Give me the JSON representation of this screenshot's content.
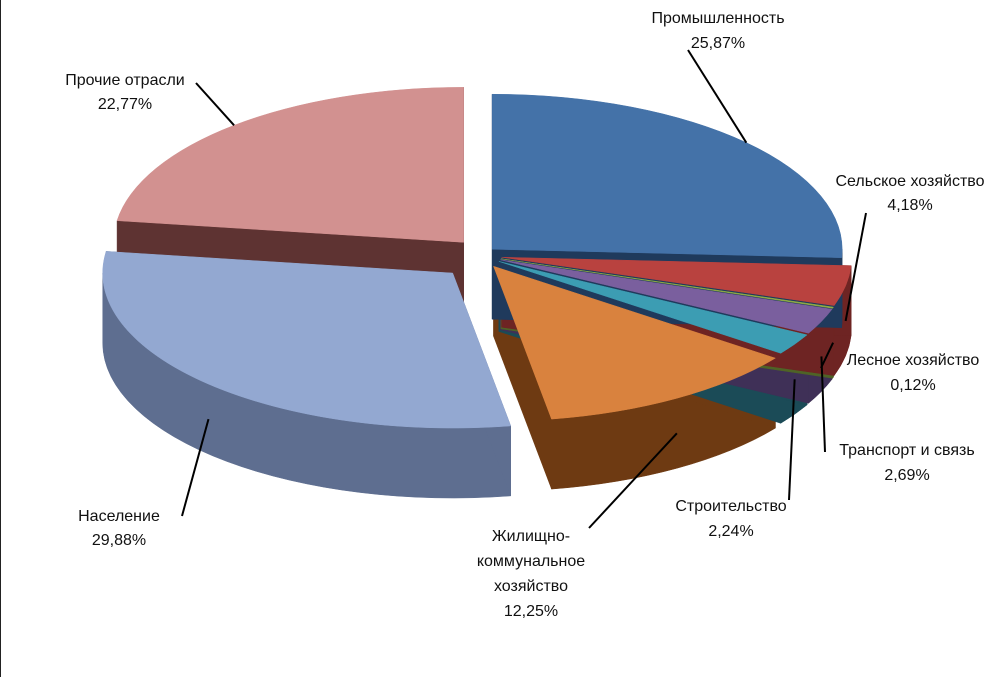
{
  "chart_data": {
    "type": "pie",
    "style": "3d-exploded",
    "title": "",
    "unit": "%",
    "slices": [
      {
        "label": "Промышленность",
        "value_text": "25,87%",
        "value": 25.87,
        "color": "#4472A8",
        "side_color": "#1F3A5C"
      },
      {
        "label": "Сельское хозяйство",
        "value_text": "4,18%",
        "value": 4.18,
        "color": "#B9423F",
        "side_color": "#6E2423"
      },
      {
        "label": "Лесное хозяйство",
        "value_text": "0,12%",
        "value": 0.12,
        "color": "#8FAA45",
        "side_color": "#4F6326"
      },
      {
        "label": "Транспорт и связь",
        "value_text": "2,69%",
        "value": 2.69,
        "color": "#7A5F9E",
        "side_color": "#3F3057"
      },
      {
        "label": "Строительство",
        "value_text": "2,24%",
        "value": 2.24,
        "color": "#3C9DB3",
        "side_color": "#1B4B57"
      },
      {
        "label_lines": [
          "Жилищно-",
          "коммунальное",
          "хозяйство"
        ],
        "value_text": "12,25%",
        "value": 12.25,
        "color": "#D9823E",
        "side_color": "#6E3A12"
      },
      {
        "label": "Население",
        "value_text": "29,88%",
        "value": 29.88,
        "color": "#93A8D1",
        "side_color": "#5E6E90"
      },
      {
        "label": "Прочие отрасли",
        "value_text": "22,77%",
        "value": 22.77,
        "color": "#D29190",
        "side_color": "#5E3332"
      }
    ]
  }
}
